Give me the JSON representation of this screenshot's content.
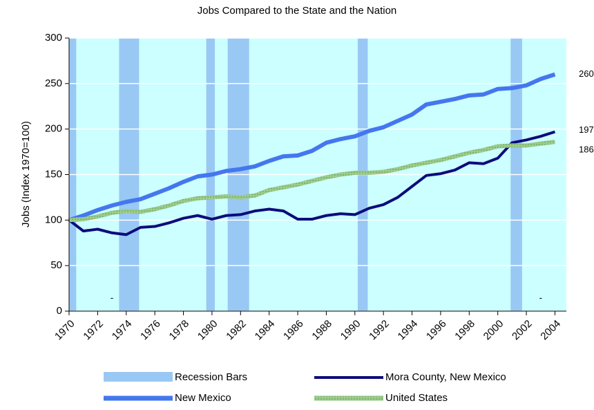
{
  "chart_data": {
    "type": "line",
    "title": "Jobs Compared to the State and the Nation",
    "y_label": "Jobs (Index 1970=100)",
    "x": [
      1970,
      1971,
      1972,
      1973,
      1974,
      1975,
      1976,
      1977,
      1978,
      1979,
      1980,
      1981,
      1982,
      1983,
      1984,
      1985,
      1986,
      1987,
      1988,
      1989,
      1990,
      1991,
      1992,
      1993,
      1994,
      1995,
      1996,
      1997,
      1998,
      1999,
      2000,
      2001,
      2002,
      2003,
      2004
    ],
    "series": [
      {
        "name": "New Mexico",
        "color": "#4477ee",
        "values": [
          100,
          105,
          111,
          116,
          120,
          123,
          129,
          135,
          142,
          148,
          150,
          154,
          156,
          159,
          165,
          170,
          171,
          176,
          185,
          189,
          192,
          198,
          202,
          209,
          216,
          227,
          230,
          233,
          237,
          238,
          244,
          245,
          248,
          255,
          260
        ]
      },
      {
        "name": "Mora County, New Mexico",
        "color": "#0c0c7a",
        "values": [
          100,
          88,
          90,
          86,
          84,
          92,
          93,
          97,
          102,
          105,
          101,
          105,
          106,
          110,
          112,
          110,
          101,
          101,
          105,
          107,
          106,
          113,
          117,
          125,
          137,
          149,
          151,
          155,
          163,
          162,
          168,
          185,
          188,
          192,
          197
        ]
      },
      {
        "name": "United States",
        "color": "#9ccb8c",
        "values": [
          100,
          101,
          104,
          108,
          110,
          109,
          112,
          116,
          121,
          124,
          125,
          126,
          125,
          127,
          133,
          136,
          139,
          143,
          147,
          150,
          152,
          152,
          153,
          156,
          160,
          163,
          166,
          170,
          174,
          177,
          181,
          182,
          182,
          184,
          186
        ]
      }
    ],
    "recession_label": "Recession Bars",
    "recession_color": "#99c8f4",
    "recessions": [
      [
        1970,
        1970.5
      ],
      [
        1973.5,
        1974.9
      ],
      [
        1979.6,
        1980.2
      ],
      [
        1981.1,
        1982.6
      ],
      [
        1990.2,
        1990.9
      ],
      [
        2000.9,
        2001.7
      ]
    ],
    "annotations": [
      {
        "text": "-",
        "x": 1973,
        "y": 14
      },
      {
        "text": "-",
        "x": 2003,
        "y": 14
      }
    ],
    "xlim": [
      1970,
      2004.8
    ],
    "xticks": [
      1970,
      1972,
      1974,
      1976,
      1978,
      1980,
      1982,
      1984,
      1986,
      1988,
      1990,
      1992,
      1994,
      1996,
      1998,
      2000,
      2002,
      2004
    ],
    "ylim": [
      0,
      300
    ],
    "yticks": [
      0,
      50,
      100,
      150,
      200,
      250,
      300
    ],
    "grid": true,
    "plot_background": "#ccffff"
  }
}
